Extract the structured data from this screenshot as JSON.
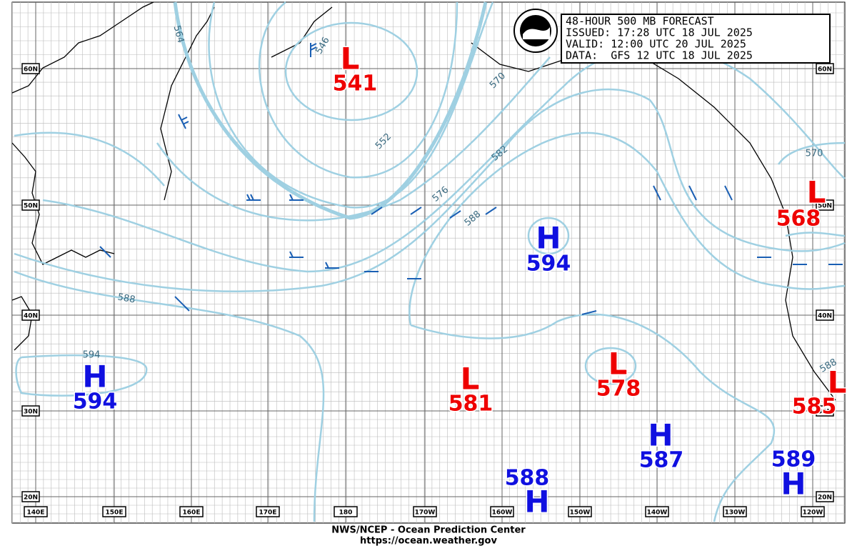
{
  "title_box": {
    "lines": [
      "48-HOUR 500 MB FORECAST",
      "ISSUED: 17:28 UTC 18 JUL 2025",
      "VALID: 12:00 UTC 20 JUL 2025",
      "DATA:  GFS 12 UTC 18 JUL 2025"
    ]
  },
  "centers": [
    {
      "letter": "L",
      "value": 541
    },
    {
      "letter": "H",
      "value": 594
    },
    {
      "letter": "L",
      "value": 568
    },
    {
      "letter": "H",
      "value": 594
    },
    {
      "letter": "L",
      "value": 581
    },
    {
      "letter": "L",
      "value": 578
    },
    {
      "letter": "H",
      "value": 587
    },
    {
      "letter": "H",
      "value": 589
    },
    {
      "letter": "H",
      "value": 588
    },
    {
      "letter": "L",
      "value": 585
    }
  ],
  "contour_labels": [
    564,
    546,
    552,
    570,
    576,
    582,
    588,
    570,
    588,
    594,
    588
  ],
  "latitude_labels": [
    "60N",
    "50N",
    "40N",
    "30N",
    "20N"
  ],
  "longitude_labels": [
    "140E",
    "150E",
    "160E",
    "170E",
    "180",
    "170W",
    "160W",
    "150W",
    "140W",
    "130W",
    "120W"
  ],
  "footer": [
    "NWS/NCEP - Ocean Prediction Center",
    "https://ocean.weather.gov"
  ]
}
